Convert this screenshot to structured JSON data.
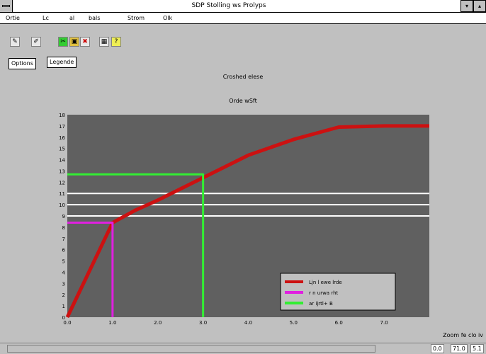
{
  "window": {
    "title": "SDP Stolling ws Prolyps",
    "system_menu_icon": "system-menu-icon",
    "minimize_label": "▾",
    "restore_label": "▴"
  },
  "menu": {
    "items": [
      "Ortie",
      "Lc",
      "al",
      "bals",
      "Strom",
      "Olk"
    ]
  },
  "toolbar": {
    "buttons": [
      {
        "icon": "pencil-icon",
        "glyph": "✎"
      },
      {
        "icon": "edit-icon",
        "glyph": "✐"
      },
      {
        "icon": "cut-icon",
        "glyph": "✂"
      },
      {
        "icon": "paste-icon",
        "glyph": "▣"
      },
      {
        "icon": "delete-icon",
        "glyph": "✖"
      },
      {
        "icon": "grid-icon",
        "glyph": "▦"
      },
      {
        "icon": "help-icon",
        "glyph": "?"
      }
    ],
    "options_label": "Options",
    "legend_label": "Legende"
  },
  "plot": {
    "title": "Croshed elese",
    "subtitle": "Orde wSft",
    "background": "#606060"
  },
  "chart_data": {
    "type": "line",
    "xlim": [
      0,
      8
    ],
    "ylim": [
      0,
      18
    ],
    "x_ticks": [
      "0.0",
      "1.0",
      "2.0",
      "3.0",
      "4.0",
      "5.0",
      "6.0",
      "7.0"
    ],
    "y_ticks": [
      "0",
      "1",
      "2",
      "3",
      "4",
      "5",
      "6",
      "7",
      "8",
      "9",
      "10",
      "11",
      "12",
      "13",
      "14",
      "15",
      "16",
      "17",
      "18"
    ],
    "grid": false,
    "legend": "bottom-right",
    "series": [
      {
        "color": "#cc1111",
        "x": [
          0.0,
          1.0,
          1.5,
          2.0,
          3.0,
          4.0,
          5.0,
          6.0,
          7.0,
          8.0
        ],
        "y": [
          0.0,
          8.4,
          9.5,
          10.4,
          12.4,
          14.4,
          15.8,
          16.9,
          17.0,
          17.0
        ]
      },
      {
        "color": "#e020e0",
        "x": [
          0.0,
          1.0,
          1.0
        ],
        "y": [
          8.4,
          8.4,
          0.0
        ]
      },
      {
        "color": "#33ee33",
        "x": [
          0.0,
          3.0,
          3.0
        ],
        "y": [
          12.7,
          12.7,
          0.0
        ]
      }
    ],
    "reference_lines": [
      {
        "color": "#ffffff",
        "y": 11.0
      },
      {
        "color": "#ffffff",
        "y": 10.0
      },
      {
        "color": "#ffffff",
        "y": 9.0
      }
    ],
    "legend_entries": [
      {
        "color": "#cc1111",
        "label": "Ljn l ewe lrde"
      },
      {
        "color": "#e020e0",
        "label": "r n urwa rht"
      },
      {
        "color": "#33ee33",
        "label": "ar ijrtl+ B"
      }
    ]
  },
  "status": {
    "zoom_label": "Zoom fe clo iv",
    "cells": [
      "0.0",
      "71.0",
      "5.1"
    ]
  }
}
